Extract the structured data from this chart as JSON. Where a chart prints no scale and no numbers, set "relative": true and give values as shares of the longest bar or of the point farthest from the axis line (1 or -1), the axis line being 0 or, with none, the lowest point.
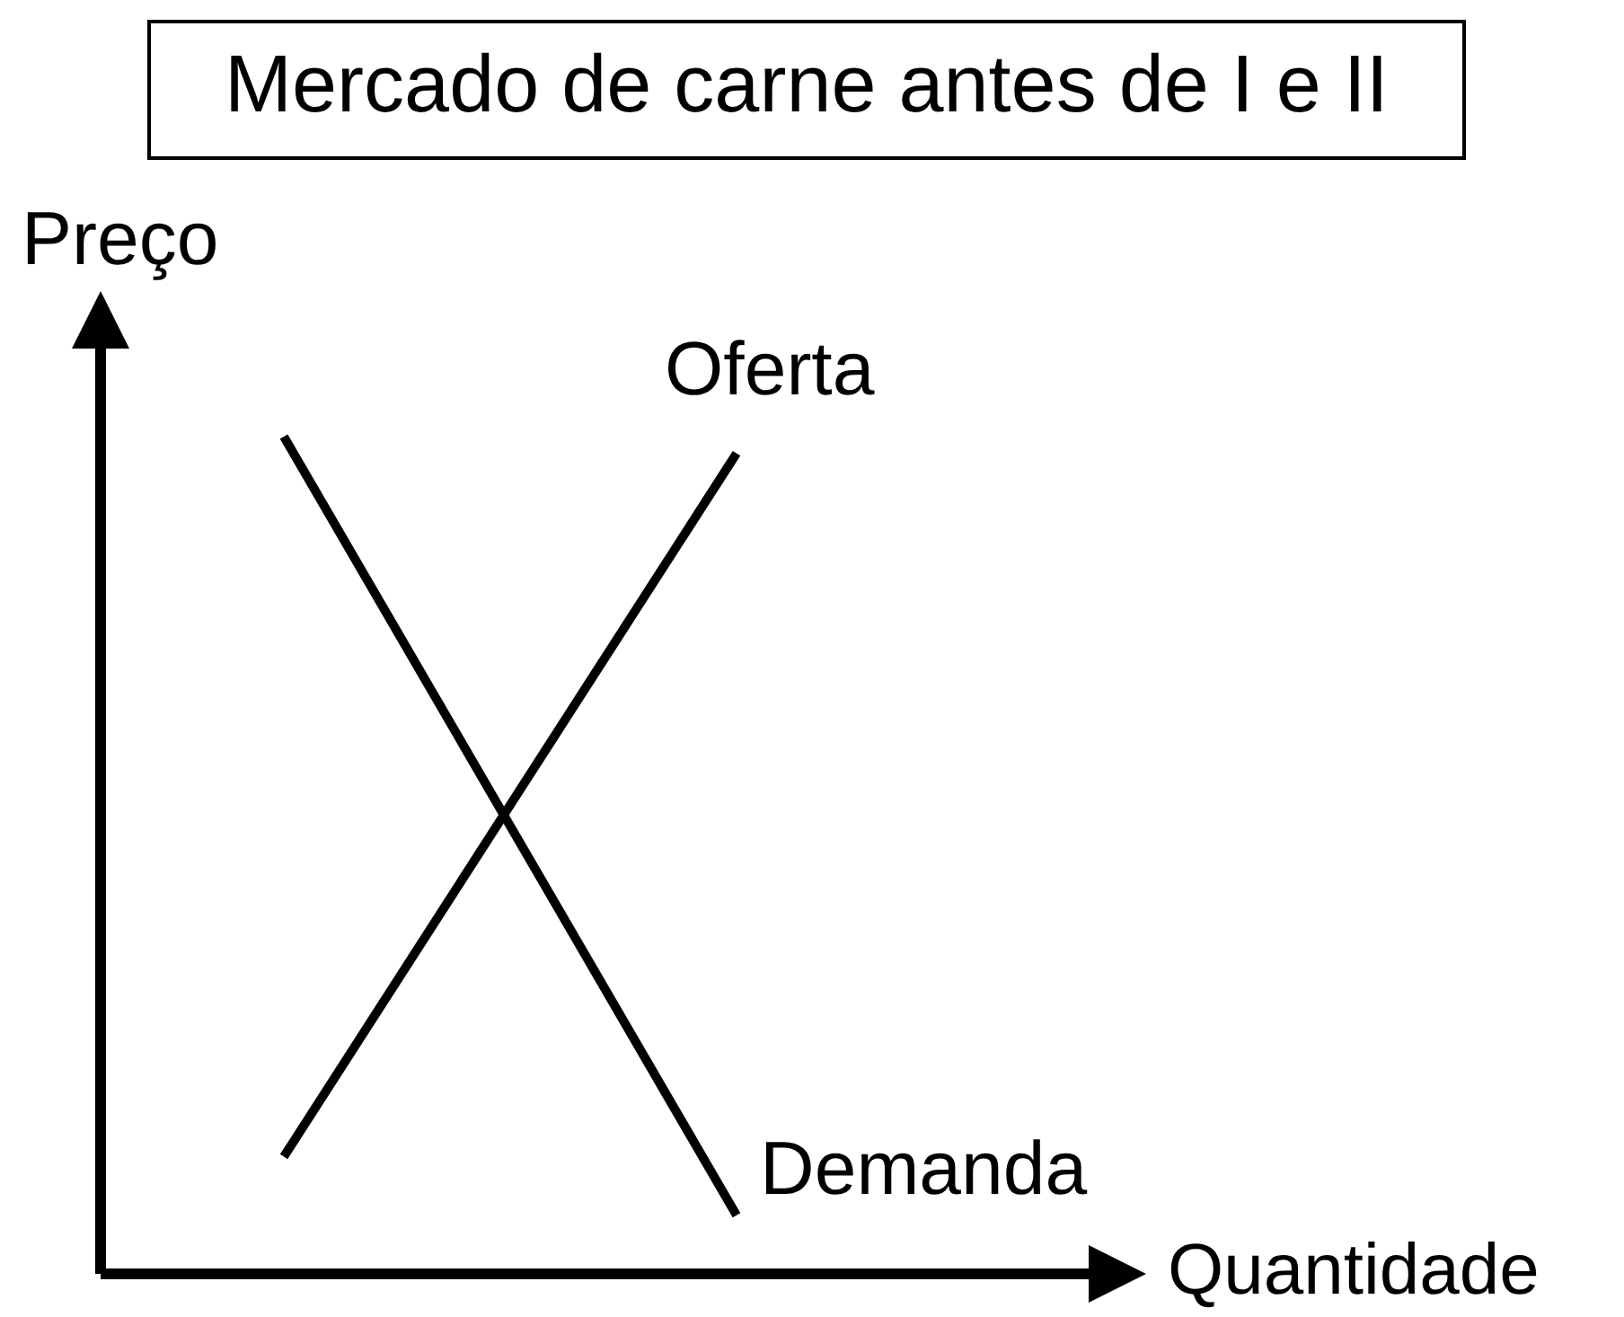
{
  "chart_data": {
    "type": "line",
    "title": "Mercado de carne antes de I e II",
    "xlabel": "Quantidade",
    "ylabel": "Preço",
    "relative": true,
    "categories": [
      null,
      null
    ],
    "series": [
      {
        "name": "Oferta",
        "color": "#000000",
        "values": [
          0.14,
          0.98
        ]
      },
      {
        "name": "Demanda",
        "color": "#000000",
        "values": [
          1,
          0.07
        ]
      }
    ],
    "marker": "none",
    "line_style": "solid"
  }
}
